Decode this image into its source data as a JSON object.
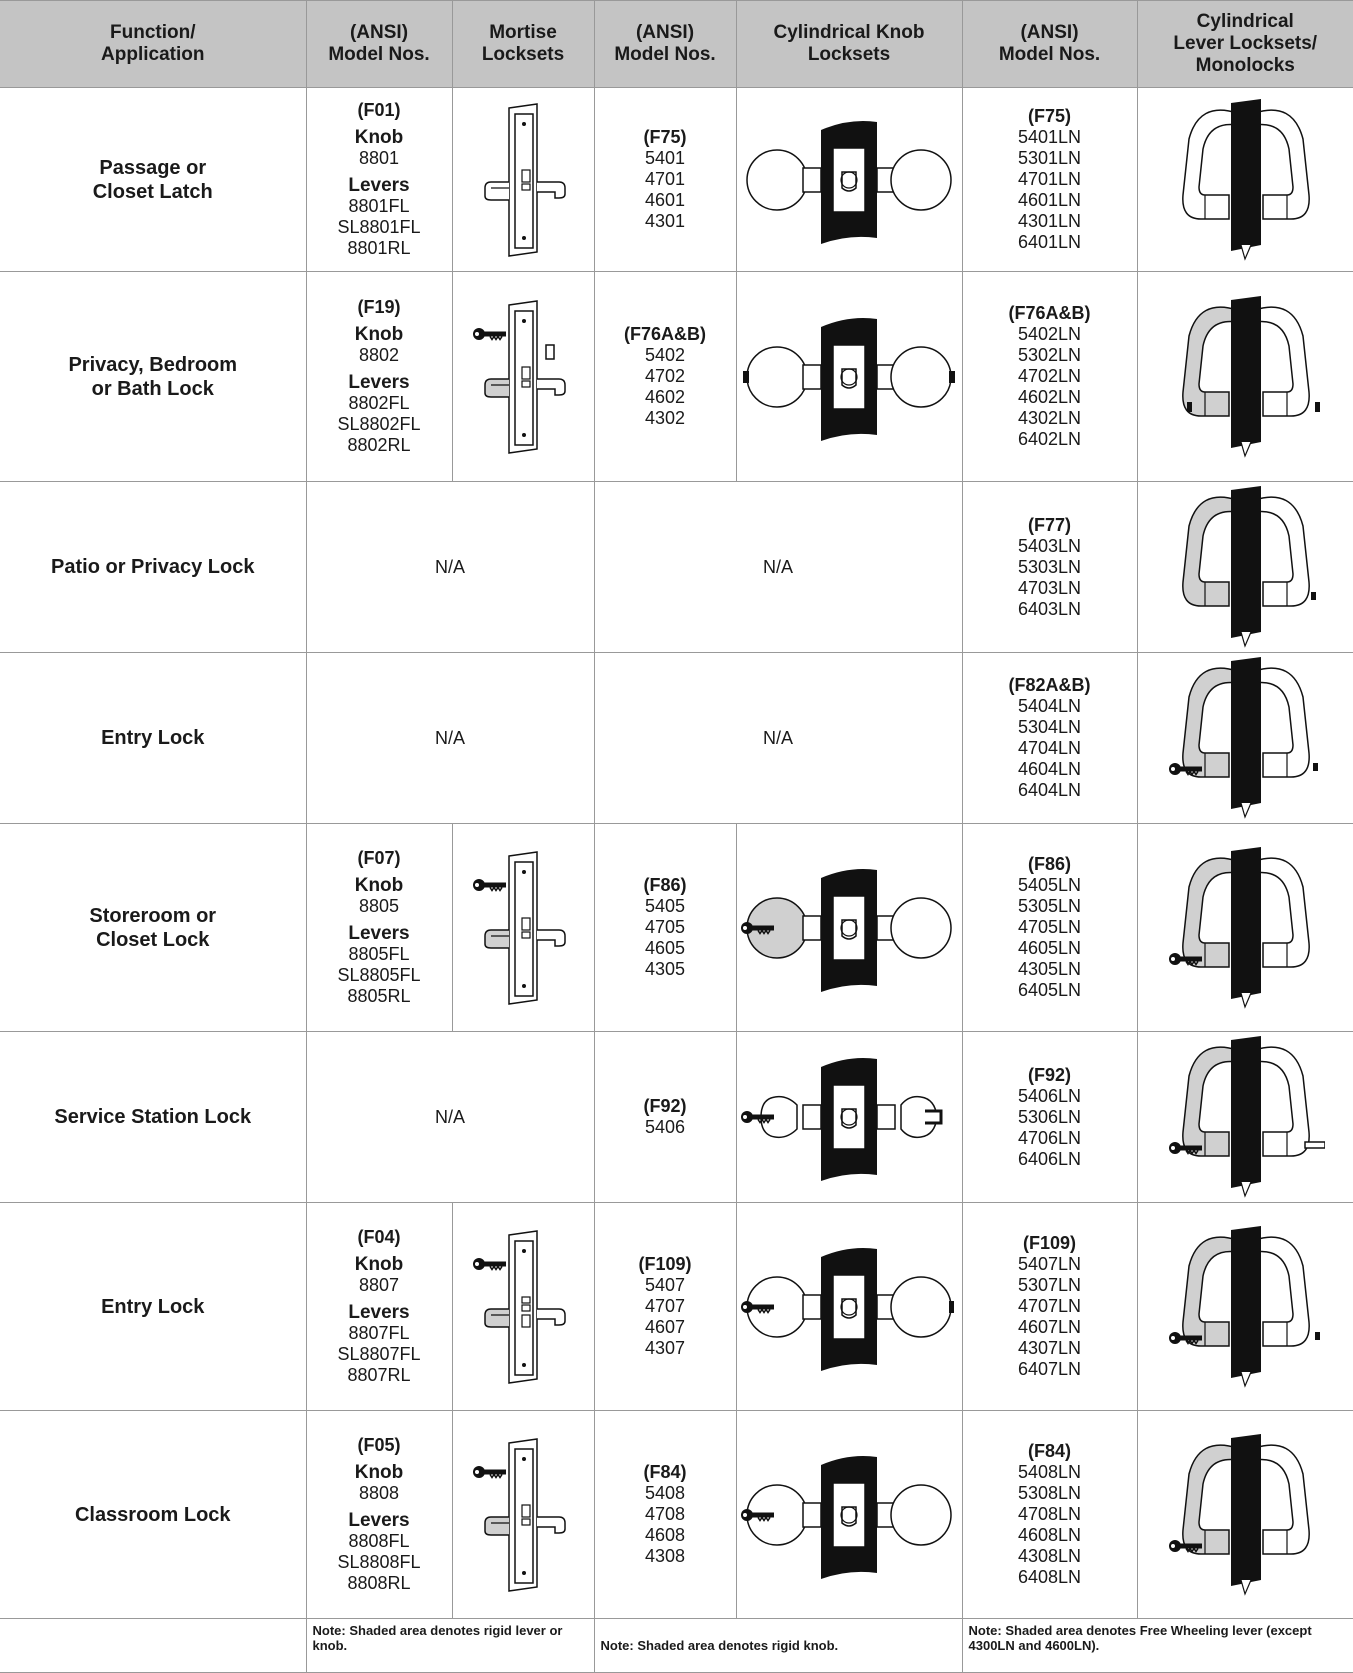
{
  "headers": {
    "function": "Function/\nApplication",
    "ansi1": "(ANSI)\nModel Nos.",
    "mortise": "Mortise\nLocksets",
    "ansi2": "(ANSI)\nModel Nos.",
    "knob": "Cylindrical Knob\nLocksets",
    "ansi3": "(ANSI)\nModel Nos.",
    "lever": "Cylindrical\nLever Locksets/\nMonolocks"
  },
  "rows": [
    {
      "function": "Passage or\nCloset Latch",
      "mortise": {
        "code": "(F01)",
        "knob_label": "Knob",
        "knob_model": "8801",
        "levers_label": "Levers",
        "lever_models": [
          "8801FL",
          "SL8801FL",
          "8801RL"
        ]
      },
      "knob": {
        "code": "(F75)",
        "models": [
          "5401",
          "4701",
          "4601",
          "4301"
        ]
      },
      "lever": {
        "code": "(F75)",
        "models": [
          "5401LN",
          "5301LN",
          "4701LN",
          "4601LN",
          "4301LN",
          "6401LN"
        ]
      }
    },
    {
      "function": "Privacy, Bedroom\nor Bath Lock",
      "mortise": {
        "code": "(F19)",
        "knob_label": "Knob",
        "knob_model": "8802",
        "levers_label": "Levers",
        "lever_models": [
          "8802FL",
          "SL8802FL",
          "8802RL"
        ]
      },
      "knob": {
        "code": "(F76A&B)",
        "models": [
          "5402",
          "4702",
          "4602",
          "4302"
        ]
      },
      "lever": {
        "code": "(F76A&B)",
        "models": [
          "5402LN",
          "5302LN",
          "4702LN",
          "4602LN",
          "4302LN",
          "6402LN"
        ]
      }
    },
    {
      "function": "Patio or Privacy Lock",
      "mortise_na": "N/A",
      "knob_na": "N/A",
      "lever": {
        "code": "(F77)",
        "models": [
          "5403LN",
          "5303LN",
          "4703LN",
          "6403LN"
        ]
      }
    },
    {
      "function": "Entry Lock",
      "mortise_na": "N/A",
      "knob_na": "N/A",
      "lever": {
        "code": "(F82A&B)",
        "models": [
          "5404LN",
          "5304LN",
          "4704LN",
          "4604LN",
          "6404LN"
        ]
      }
    },
    {
      "function": "Storeroom or\nCloset Lock",
      "mortise": {
        "code": "(F07)",
        "knob_label": "Knob",
        "knob_model": "8805",
        "levers_label": "Levers",
        "lever_models": [
          "8805FL",
          "SL8805FL",
          "8805RL"
        ]
      },
      "knob": {
        "code": "(F86)",
        "models": [
          "5405",
          "4705",
          "4605",
          "4305"
        ]
      },
      "lever": {
        "code": "(F86)",
        "models": [
          "5405LN",
          "5305LN",
          "4705LN",
          "4605LN",
          "4305LN",
          "6405LN"
        ]
      }
    },
    {
      "function": "Service Station Lock",
      "mortise_na": "N/A",
      "knob": {
        "code": "(F92)",
        "models": [
          "5406"
        ]
      },
      "lever": {
        "code": "(F92)",
        "models": [
          "5406LN",
          "5306LN",
          "4706LN",
          "6406LN"
        ]
      }
    },
    {
      "function": "Entry Lock",
      "mortise": {
        "code": "(F04)",
        "knob_label": "Knob",
        "knob_model": "8807",
        "levers_label": "Levers",
        "lever_models": [
          "8807FL",
          "SL8807FL",
          "8807RL"
        ]
      },
      "knob": {
        "code": "(F109)",
        "models": [
          "5407",
          "4707",
          "4607",
          "4307"
        ]
      },
      "lever": {
        "code": "(F109)",
        "models": [
          "5407LN",
          "5307LN",
          "4707LN",
          "4607LN",
          "4307LN",
          "6407LN"
        ]
      }
    },
    {
      "function": "Classroom Lock",
      "mortise": {
        "code": "(F05)",
        "knob_label": "Knob",
        "knob_model": "8808",
        "levers_label": "Levers",
        "lever_models": [
          "8808FL",
          "SL8808FL",
          "8808RL"
        ]
      },
      "knob": {
        "code": "(F84)",
        "models": [
          "5408",
          "4708",
          "4608",
          "4308"
        ]
      },
      "lever": {
        "code": "(F84)",
        "models": [
          "5408LN",
          "5308LN",
          "4708LN",
          "4608LN",
          "4308LN",
          "6408LN"
        ]
      }
    }
  ],
  "notes": {
    "mortise": "Note: Shaded area denotes rigid lever or knob.",
    "knob": "Note: Shaded area denotes rigid knob.",
    "lever": "Note: Shaded area denotes Free Wheeling lever (except 4300LN and 4600LN)."
  },
  "colors": {
    "header_bg": "#c4c4c4",
    "border": "#999999",
    "shade": "#d0d0d0"
  }
}
